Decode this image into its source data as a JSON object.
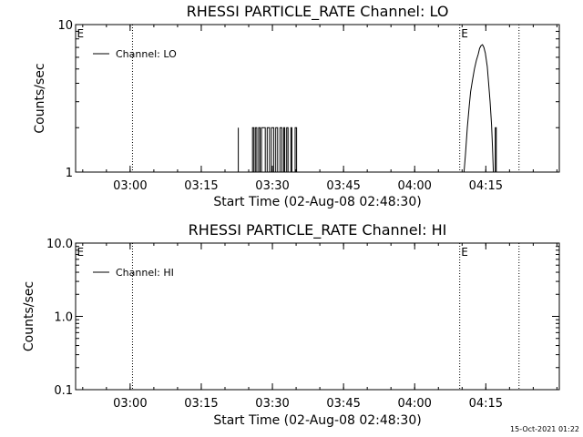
{
  "footer": {
    "timestamp": "15-Oct-2021 01:22"
  },
  "chart_data": [
    {
      "type": "line",
      "title": "RHESSI PARTICLE_RATE Channel: LO",
      "xlabel": "Start Time (02-Aug-08 02:48:30)",
      "ylabel": "Counts/sec",
      "yscale": "log",
      "ylim": [
        1,
        10
      ],
      "y_ticks": [
        {
          "v": 1,
          "label": "1"
        },
        {
          "v": 10,
          "label": "10"
        }
      ],
      "x_unit": "minutes since 02:48:30",
      "xlim": [
        0,
        102
      ],
      "x_ticks": [
        {
          "v": 11.5,
          "label": "03:00"
        },
        {
          "v": 26.5,
          "label": "03:15"
        },
        {
          "v": 41.5,
          "label": "03:30"
        },
        {
          "v": 56.5,
          "label": "03:45"
        },
        {
          "v": 71.5,
          "label": "04:00"
        },
        {
          "v": 86.5,
          "label": "04:15"
        }
      ],
      "vlines": [
        12.0,
        81.0,
        93.5
      ],
      "markers": [
        {
          "x": 0.3,
          "label": "E"
        },
        {
          "x": 81.3,
          "label": "E"
        }
      ],
      "legend": {
        "label": "Channel: LO",
        "position": "top-left"
      },
      "grid": false,
      "series": [
        {
          "name": "Channel: LO",
          "points": [
            [
              0,
              1
            ],
            [
              34.3,
              1
            ],
            [
              34.3,
              2
            ],
            [
              34.3,
              1
            ],
            [
              37.3,
              1
            ],
            [
              37.3,
              2
            ],
            [
              37.6,
              2
            ],
            [
              37.6,
              1
            ],
            [
              37.9,
              1
            ],
            [
              37.9,
              2
            ],
            [
              38.2,
              2
            ],
            [
              38.2,
              1
            ],
            [
              38.6,
              1
            ],
            [
              38.6,
              2
            ],
            [
              38.9,
              2
            ],
            [
              38.9,
              1
            ],
            [
              39.2,
              1
            ],
            [
              39.2,
              2
            ],
            [
              40.0,
              2
            ],
            [
              40.0,
              1
            ],
            [
              40.4,
              1
            ],
            [
              40.4,
              2
            ],
            [
              40.9,
              2
            ],
            [
              40.9,
              1
            ],
            [
              41.3,
              1
            ],
            [
              41.3,
              2
            ],
            [
              41.8,
              2
            ],
            [
              41.8,
              1
            ],
            [
              42.2,
              1
            ],
            [
              42.2,
              2
            ],
            [
              42.6,
              2
            ],
            [
              42.6,
              1
            ],
            [
              43.1,
              1
            ],
            [
              43.1,
              2
            ],
            [
              43.5,
              2
            ],
            [
              43.5,
              1
            ],
            [
              43.9,
              1
            ],
            [
              43.9,
              2
            ],
            [
              44.1,
              2
            ],
            [
              44.1,
              1
            ],
            [
              44.5,
              1
            ],
            [
              44.5,
              2
            ],
            [
              44.8,
              2
            ],
            [
              44.8,
              1
            ],
            [
              45.4,
              1
            ],
            [
              45.4,
              2
            ],
            [
              45.6,
              2
            ],
            [
              45.6,
              1
            ],
            [
              46.3,
              1
            ],
            [
              46.3,
              2
            ],
            [
              46.6,
              2
            ],
            [
              46.6,
              1
            ],
            [
              81.9,
              1
            ],
            [
              82.2,
              1.3
            ],
            [
              82.6,
              2
            ],
            [
              83.0,
              2.8
            ],
            [
              83.3,
              3.5
            ],
            [
              83.7,
              4.2
            ],
            [
              84.1,
              5.0
            ],
            [
              84.5,
              5.7
            ],
            [
              84.9,
              6.3
            ],
            [
              85.2,
              6.9
            ],
            [
              85.5,
              7.2
            ],
            [
              85.8,
              7.3
            ],
            [
              86.1,
              7.0
            ],
            [
              86.4,
              6.4
            ],
            [
              86.8,
              5.2
            ],
            [
              87.1,
              4.0
            ],
            [
              87.4,
              3.0
            ],
            [
              87.7,
              2.1
            ],
            [
              87.9,
              1.5
            ],
            [
              88.1,
              1
            ],
            [
              88.5,
              1
            ],
            [
              88.5,
              2
            ],
            [
              88.7,
              2
            ],
            [
              88.7,
              1
            ],
            [
              102,
              1
            ]
          ]
        }
      ]
    },
    {
      "type": "line",
      "title": "RHESSI PARTICLE_RATE Channel: HI",
      "xlabel": "Start Time (02-Aug-08 02:48:30)",
      "ylabel": "Counts/sec",
      "yscale": "log",
      "ylim": [
        0.1,
        10
      ],
      "y_ticks": [
        {
          "v": 0.1,
          "label": "0.1"
        },
        {
          "v": 1,
          "label": "1.0"
        },
        {
          "v": 10,
          "label": "10.0"
        }
      ],
      "x_unit": "minutes since 02:48:30",
      "xlim": [
        0,
        102
      ],
      "x_ticks": [
        {
          "v": 11.5,
          "label": "03:00"
        },
        {
          "v": 26.5,
          "label": "03:15"
        },
        {
          "v": 41.5,
          "label": "03:30"
        },
        {
          "v": 56.5,
          "label": "03:45"
        },
        {
          "v": 71.5,
          "label": "04:00"
        },
        {
          "v": 86.5,
          "label": "04:15"
        }
      ],
      "vlines": [
        12.0,
        81.0,
        93.5
      ],
      "markers": [
        {
          "x": 0.3,
          "label": "E"
        },
        {
          "x": 81.3,
          "label": "E"
        }
      ],
      "legend": {
        "label": "Channel: HI",
        "position": "top-left"
      },
      "grid": false,
      "series": [
        {
          "name": "Channel: HI",
          "points": []
        }
      ]
    }
  ]
}
